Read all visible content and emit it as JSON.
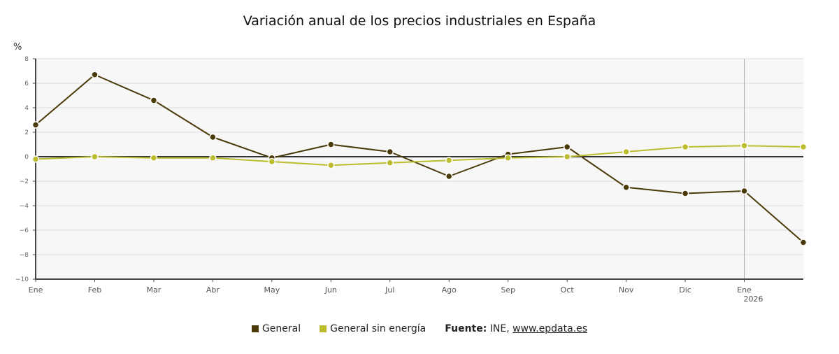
{
  "title": "Variación anual de los precios industriales en España",
  "unit_label": "%",
  "legend": {
    "items": [
      {
        "label": "General",
        "color": "#4a3a08"
      },
      {
        "label": "General sin energía",
        "color": "#bcbd2e"
      }
    ],
    "source_label": "Fuente:",
    "source_text": " INE, ",
    "source_link": "www.epdata.es"
  },
  "chart_data": {
    "type": "line",
    "title": "Variación anual de los precios industriales en España",
    "xlabel": "",
    "ylabel": "%",
    "categories": [
      "Ene",
      "Feb",
      "Mar",
      "Abr",
      "May",
      "Jun",
      "Jul",
      "Ago",
      "Sep",
      "Oct",
      "Nov",
      "Dic",
      "Ene",
      "Feb"
    ],
    "x_tick_labels": [
      "Ene",
      "Feb",
      "Mar",
      "Abr",
      "May",
      "Jun",
      "Jul",
      "Ago",
      "Sep",
      "Oct",
      "Nov",
      "Dic",
      "Ene"
    ],
    "year_annotation": {
      "label": "2026",
      "category_index": 12
    },
    "ylim": [
      -10,
      8
    ],
    "y_ticks": [
      -10,
      -8,
      -6,
      -4,
      -2,
      0,
      2,
      4,
      6,
      8
    ],
    "grid": true,
    "legend_position": "bottom",
    "series": [
      {
        "name": "General",
        "color": "#4a3a08",
        "values": [
          2.6,
          6.7,
          4.6,
          1.6,
          -0.1,
          1.0,
          0.4,
          -1.6,
          0.2,
          0.8,
          -2.5,
          -3.0,
          -2.8,
          -7.0
        ]
      },
      {
        "name": "General sin energía",
        "color": "#bcbd2e",
        "values": [
          -0.2,
          0.0,
          -0.1,
          -0.1,
          -0.4,
          -0.7,
          -0.5,
          -0.3,
          -0.1,
          0.0,
          0.4,
          0.8,
          0.9,
          0.8
        ]
      }
    ]
  }
}
